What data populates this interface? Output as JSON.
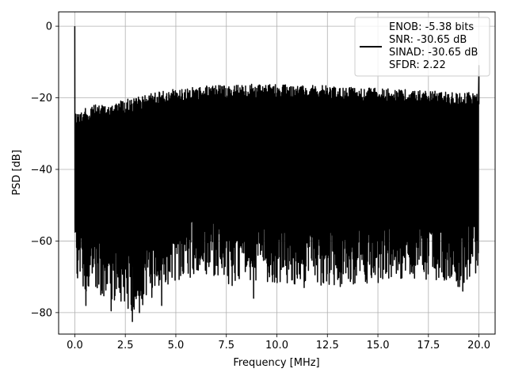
{
  "chart_data": {
    "type": "line",
    "title": "",
    "xlabel": "Frequency [MHz]",
    "ylabel": "PSD [dB]",
    "xlim": [
      -0.8,
      20.8
    ],
    "ylim": [
      -86,
      4
    ],
    "x_ticks": [
      0.0,
      2.5,
      5.0,
      7.5,
      10.0,
      12.5,
      15.0,
      17.5,
      20.0
    ],
    "x_tick_labels": [
      "0.0",
      "2.5",
      "5.0",
      "7.5",
      "10.0",
      "12.5",
      "15.0",
      "17.5",
      "20.0"
    ],
    "y_ticks": [
      0,
      -20,
      -40,
      -60,
      -80
    ],
    "y_tick_labels": [
      "0",
      "−20",
      "−40",
      "−60",
      "−80"
    ],
    "grid": true,
    "legend_position": "top-right",
    "legend_entries": [
      "ENOB: -5.38 bits",
      "SNR: -30.65 dB",
      "SINAD: -30.65 dB",
      "SFDR: 2.22"
    ],
    "series": [
      {
        "color": "#000000",
        "x_range": [
          0,
          20
        ],
        "peak": {
          "x": 0.0,
          "y": 0.0
        },
        "upper_envelope": {
          "x": [
            0.0,
            0.5,
            1.0,
            2.0,
            3.0,
            4.0,
            5.0,
            6.0,
            7.0,
            8.0,
            9.0,
            10.0,
            11.0,
            12.0,
            13.0,
            14.0,
            15.0,
            16.0,
            17.0,
            18.0,
            19.0,
            20.0
          ],
          "y": [
            -24,
            -23,
            -22,
            -21,
            -20,
            -18.5,
            -17.5,
            -17,
            -16.5,
            -16.3,
            -16.2,
            -16.3,
            -16.4,
            -16.5,
            -16.8,
            -17,
            -17.3,
            -17.6,
            -17.9,
            -18.2,
            -18.5,
            -18.5
          ]
        },
        "lower_envelope": {
          "x": [
            0.0,
            0.5,
            1.0,
            2.0,
            3.0,
            4.0,
            5.0,
            6.0,
            7.0,
            8.0,
            9.0,
            10.0,
            11.0,
            12.0,
            13.0,
            14.0,
            15.0,
            16.0,
            17.0,
            18.0,
            19.0,
            20.0
          ],
          "y": [
            -65,
            -70,
            -70,
            -72,
            -75,
            -70,
            -66,
            -65,
            -66,
            -68,
            -66,
            -67,
            -67,
            -68,
            -68,
            -67,
            -67,
            -66,
            -66,
            -66,
            -68,
            -64
          ]
        },
        "min_spikes": [
          {
            "x": 0.55,
            "y": -78
          },
          {
            "x": 1.8,
            "y": -79.5
          },
          {
            "x": 2.85,
            "y": -82.5
          },
          {
            "x": 3.2,
            "y": -80
          },
          {
            "x": 4.3,
            "y": -78
          },
          {
            "x": 8.85,
            "y": -76
          },
          {
            "x": 11.35,
            "y": -73
          },
          {
            "x": 19.2,
            "y": -74
          }
        ],
        "high_spikes": [
          {
            "x": 20.0,
            "y": -11
          }
        ]
      }
    ]
  }
}
